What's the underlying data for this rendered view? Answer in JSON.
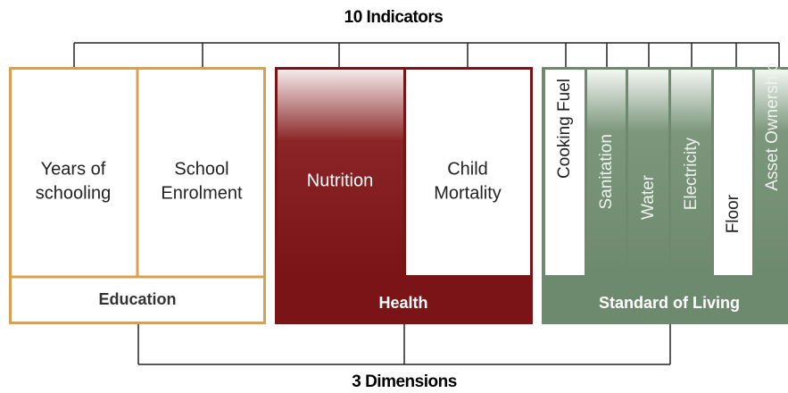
{
  "title": "10 Indicators",
  "footer": "3 Dimensions",
  "dimensions": [
    {
      "name": "Education",
      "indicators": [
        [
          "Years of",
          "schooling"
        ],
        [
          "School",
          "Enrolment"
        ]
      ]
    },
    {
      "name": "Health",
      "indicators": [
        [
          "Nutrition"
        ],
        [
          "Child",
          "Mortality"
        ]
      ]
    },
    {
      "name": "Standard of Living",
      "indicators": [
        [
          "Cooking Fuel"
        ],
        [
          "Sanitation"
        ],
        [
          "Water"
        ],
        [
          "Electricity"
        ],
        [
          "Floor"
        ],
        [
          "Asset Ownership"
        ]
      ]
    }
  ]
}
